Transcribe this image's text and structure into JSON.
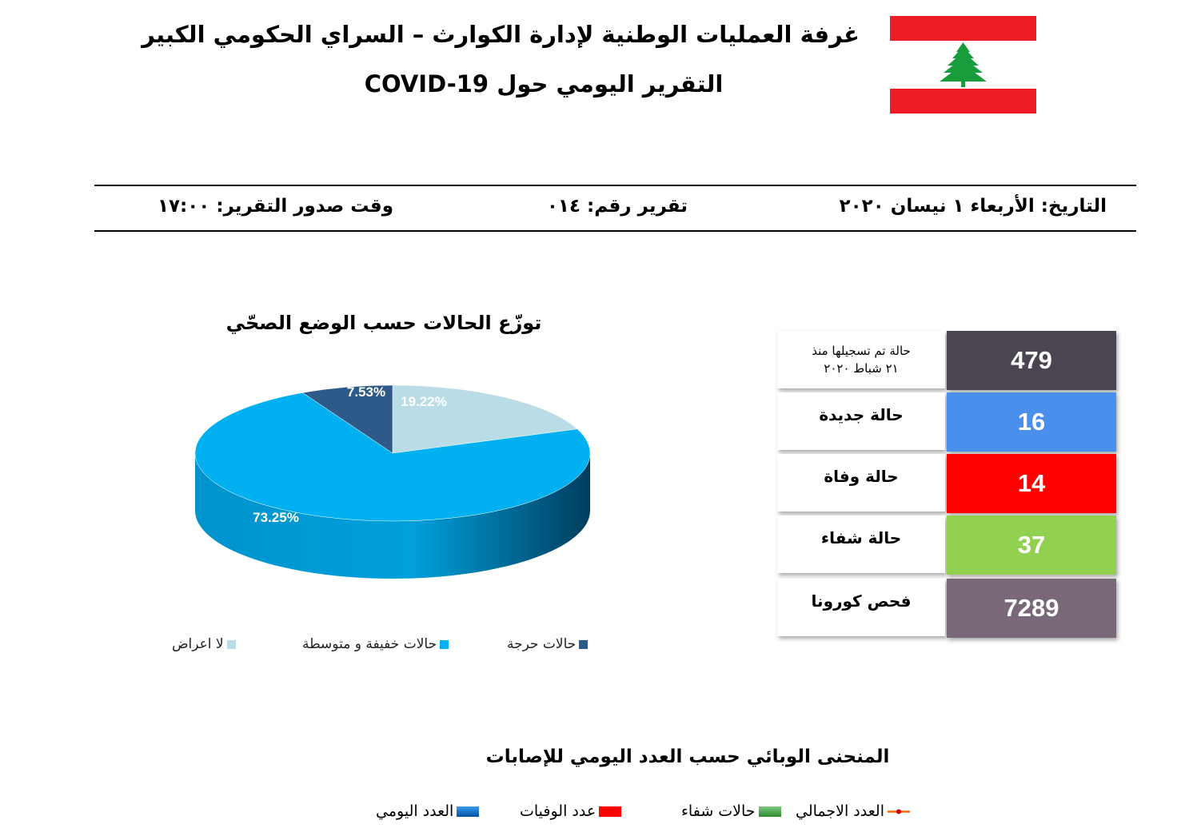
{
  "header": {
    "title_line1": "غرفة العمليات الوطنية لإدارة الكوارث – السراي الحكومي الكبير",
    "title_line2": "التقرير اليومي حول COVID-19"
  },
  "meta": {
    "date": "التاريخ: الأربعاء ١ نيسان ٢٠٢٠",
    "report_number": "تقرير رقم: ٠١٤",
    "report_time": "وقت صدور التقرير: ١٧:٠٠"
  },
  "pie": {
    "title": "توزّع الحالات حسب الوضع الصحّي",
    "slices": [
      {
        "label": "لا اعراض",
        "value": 19.22,
        "value_label": "19.22%",
        "color": "#b9dce6"
      },
      {
        "label": "حالات خفيفة و متوسطة",
        "value": 73.25,
        "value_label": "73.25%",
        "color": "#00b0f0"
      },
      {
        "label": "حالات حرجة",
        "value": 7.53,
        "value_label": "7.53%",
        "color": "#2e5a8a"
      }
    ]
  },
  "stats": [
    {
      "label_line1": "حالة تم تسجيلها منذ",
      "label_line2": "٢١ شباط ٢٠٢٠",
      "value": "479",
      "color": "#4b4552"
    },
    {
      "label_line1": "حالة جديدة",
      "label_line2": "",
      "value": "16",
      "color": "#4a8fec"
    },
    {
      "label_line1": "حالة وفاة",
      "label_line2": "",
      "value": "14",
      "color": "#ff0000"
    },
    {
      "label_line1": "حالة شفاء",
      "label_line2": "",
      "value": "37",
      "color": "#92d050"
    },
    {
      "label_line1": "فحص كورونا",
      "label_line2": "",
      "value": "7289",
      "color": "#786878"
    }
  ],
  "curve": {
    "title": "المنحنى الوبائي حسب العدد اليومي للإصابات",
    "legend": [
      {
        "label": "العدد الاجمالي",
        "icon": "line-marker-icon",
        "color": "#ff6600"
      },
      {
        "label": "حالات شفاء",
        "icon": "swatch-icon",
        "color": "#3c9a3c"
      },
      {
        "label": "عدد الوفيات",
        "icon": "swatch-icon",
        "color": "#ff0000"
      },
      {
        "label": "العدد اليومي",
        "icon": "swatch-icon",
        "color": "#0070c0"
      }
    ]
  },
  "flag": {
    "name": "lebanon-flag",
    "red": "#ee1d25",
    "green": "#199c3c"
  }
}
